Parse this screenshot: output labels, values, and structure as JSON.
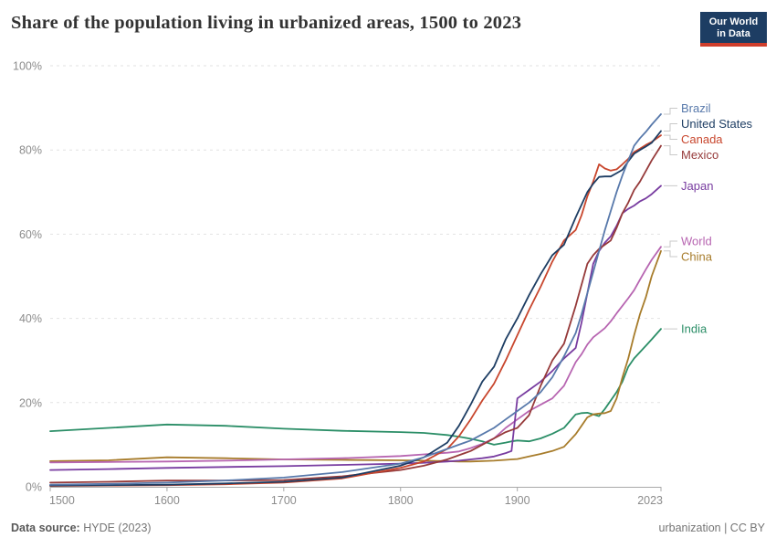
{
  "header": {
    "title": "Share of the population living in urbanized areas, 1500 to 2023",
    "logo": {
      "line1": "Our World",
      "line2": "in Data",
      "bg_color": "#1d3d63",
      "accent_color": "#cf3e2c"
    }
  },
  "footer": {
    "source_label": "Data source:",
    "source_value": "HYDE (2023)",
    "license": "urbanization | CC BY"
  },
  "chart_data": {
    "type": "line",
    "title": "Share of the population living in urbanized areas, 1500 to 2023",
    "xlabel": "",
    "ylabel": "",
    "xlim": [
      1500,
      2023
    ],
    "ylim": [
      0,
      100
    ],
    "x_ticks": [
      1500,
      1600,
      1700,
      1800,
      1900,
      2023
    ],
    "y_ticks": [
      0,
      20,
      40,
      60,
      80,
      100
    ],
    "y_tick_suffix": "%",
    "grid": "horizontal-dashed",
    "legend_position": "right-edge-line-labels",
    "grid_color": "#e2e2e2",
    "axis_color": "#a8a8a8",
    "tick_label_color": "#8c8c8c",
    "connector_color": "#c9c9c9",
    "x": [
      1500,
      1550,
      1600,
      1650,
      1700,
      1750,
      1800,
      1820,
      1840,
      1850,
      1860,
      1870,
      1880,
      1890,
      1895,
      1900,
      1910,
      1920,
      1930,
      1940,
      1950,
      1955,
      1960,
      1965,
      1970,
      1975,
      1980,
      1985,
      1990,
      1995,
      2000,
      2005,
      2010,
      2015,
      2023
    ],
    "series": [
      {
        "name": "Brazil",
        "color": "#5879ab",
        "values": [
          0.5,
          0.7,
          1.0,
          1.5,
          2.2,
          3.5,
          5.5,
          7,
          9,
          10,
          11,
          12.5,
          14,
          16,
          17,
          18,
          20,
          22.5,
          26,
          31,
          36.5,
          41,
          46,
          51,
          56,
          61,
          65.5,
          70,
          74,
          77.5,
          81,
          82.8,
          84.3,
          86,
          88.5
        ]
      },
      {
        "name": "United States",
        "color": "#1d3d63",
        "values": [
          0.3,
          0.4,
          0.5,
          0.8,
          1.2,
          2.2,
          5,
          7,
          10.5,
          14.5,
          19.5,
          25,
          28.5,
          35,
          37.5,
          40,
          45.5,
          50.5,
          55,
          57.5,
          64,
          67,
          70,
          72,
          73.6,
          73.7,
          73.7,
          74.5,
          75.3,
          77.3,
          79.1,
          80,
          80.8,
          81.7,
          84.5
        ]
      },
      {
        "name": "Canada",
        "color": "#c8462d",
        "values": [
          0.2,
          0.3,
          0.4,
          0.6,
          1.0,
          2.0,
          4.5,
          6,
          9,
          12,
          16,
          20.5,
          24.5,
          30,
          33,
          36,
          42,
          47.5,
          53.5,
          58.5,
          61,
          64.5,
          69,
          72.5,
          76.6,
          75.6,
          75.1,
          75.4,
          76.6,
          77.9,
          79.5,
          80.3,
          81.2,
          81.9,
          83.5
        ]
      },
      {
        "name": "Mexico",
        "color": "#963a3a",
        "values": [
          1.0,
          1.2,
          1.5,
          1.5,
          1.6,
          2.5,
          4,
          5,
          6.5,
          7.5,
          8.5,
          10,
          11.5,
          13,
          13.5,
          14,
          17,
          24,
          30,
          34,
          43,
          48,
          53,
          55,
          56.5,
          57.5,
          58.5,
          61.5,
          65,
          67.5,
          70.5,
          72.5,
          75,
          77.5,
          81
        ]
      },
      {
        "name": "Japan",
        "color": "#783ca0",
        "values": [
          4,
          4.2,
          4.5,
          4.7,
          4.9,
          5.2,
          5.5,
          5.7,
          6,
          6.2,
          6.5,
          6.8,
          7.2,
          8,
          8.5,
          21,
          23,
          25,
          27.5,
          30.5,
          33,
          39,
          46,
          53,
          56,
          58,
          59.5,
          62,
          65,
          66,
          66.8,
          67.8,
          68.5,
          69.5,
          71.5
        ]
      },
      {
        "name": "World",
        "color": "#b765b1",
        "values": [
          5.8,
          5.9,
          6.0,
          6.2,
          6.5,
          6.8,
          7.3,
          7.7,
          8.1,
          8.4,
          9.2,
          10.2,
          11.5,
          14,
          15,
          16,
          18,
          19.5,
          21,
          24,
          29.6,
          31.5,
          33.8,
          35.5,
          36.6,
          37.7,
          39.3,
          41.2,
          43,
          44.8,
          46.7,
          49.2,
          51.6,
          53.9,
          57
        ]
      },
      {
        "name": "China",
        "color": "#a77c2b",
        "values": [
          6.1,
          6.3,
          7.0,
          6.8,
          6.5,
          6.4,
          6.3,
          6.2,
          6.1,
          6.0,
          6.0,
          6.1,
          6.2,
          6.4,
          6.5,
          6.6,
          7.2,
          7.8,
          8.5,
          9.5,
          12.5,
          14.5,
          16.5,
          17.2,
          17.4,
          17.5,
          18,
          21,
          26,
          30.5,
          36,
          41,
          45,
          50,
          56
        ]
      },
      {
        "name": "India",
        "color": "#2b8e67",
        "values": [
          13.2,
          14,
          14.8,
          14.5,
          13.8,
          13.3,
          13,
          12.8,
          12.3,
          11.9,
          11.4,
          10.8,
          10,
          10.5,
          10.8,
          11,
          10.8,
          11.5,
          12.6,
          14,
          17.2,
          17.5,
          17.6,
          17.2,
          16.8,
          18.5,
          20.5,
          22.5,
          25,
          28.5,
          30.5,
          32,
          33.5,
          35,
          37.5
        ]
      }
    ]
  }
}
